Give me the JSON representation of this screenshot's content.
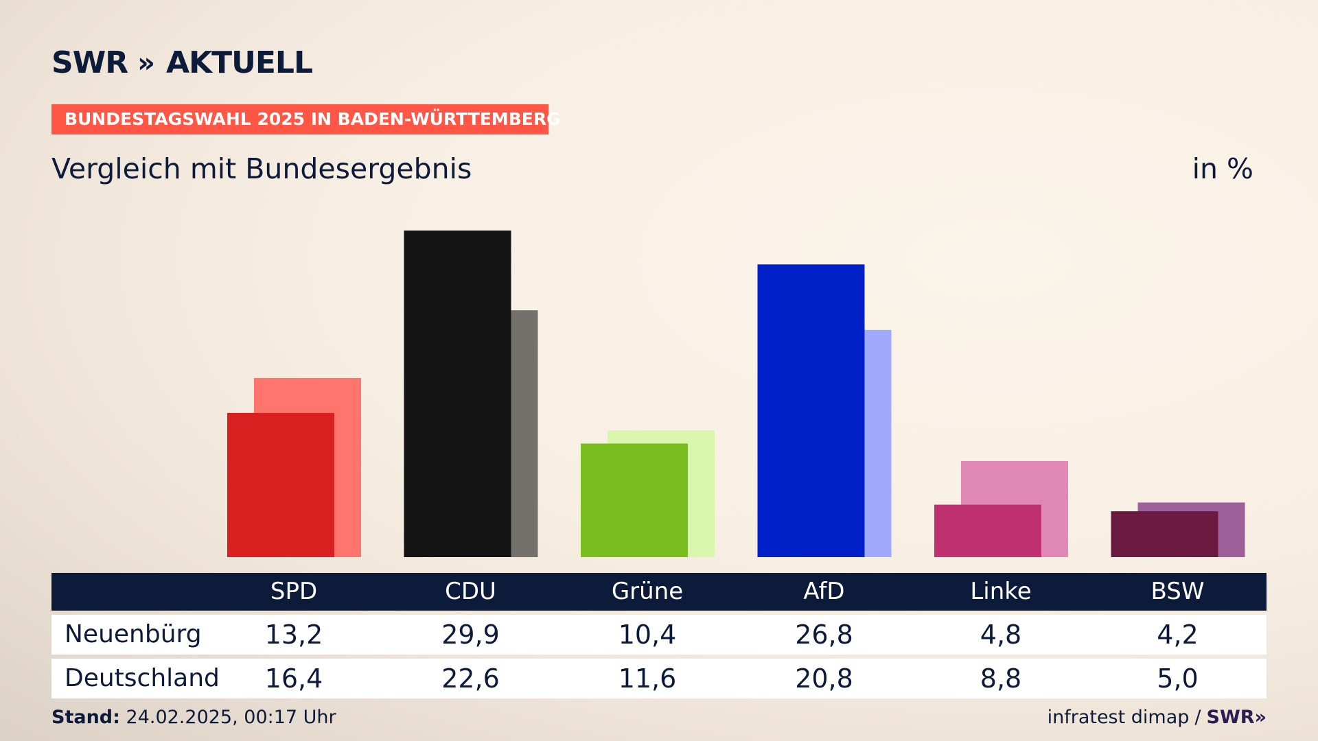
{
  "brand": {
    "logo_text": "SWR",
    "logo_chevrons": "»",
    "logo_suffix": "AKTUELL",
    "color": "#0d1b3a"
  },
  "banner": {
    "text": "BUNDESTAGSWAHL 2025 IN BADEN-WÜRTTEMBERG",
    "color": "#ff5645"
  },
  "subtitle": "Vergleich mit Bundesergebnis",
  "unit": "in %",
  "chart_data": {
    "type": "bar",
    "categories": [
      "SPD",
      "CDU",
      "Grüne",
      "AfD",
      "Linke",
      "BSW"
    ],
    "series": [
      {
        "name": "Neuenbürg",
        "values": [
          13.2,
          29.9,
          10.4,
          26.8,
          4.8,
          4.2
        ],
        "colors": [
          "#d7201f",
          "#141414",
          "#7abd1f",
          "#0020c8",
          "#be3070",
          "#6b1a40"
        ]
      },
      {
        "name": "Deutschland",
        "values": [
          16.4,
          22.6,
          11.6,
          20.8,
          8.8,
          5.0
        ],
        "colors": [
          "#ff756d",
          "#74716d",
          "#d9f6ad",
          "#9faafc",
          "#e088b6",
          "#9e6098"
        ]
      }
    ],
    "ylim": [
      0,
      30
    ],
    "grid": false,
    "legend": "table-below"
  },
  "table": {
    "rows": [
      {
        "label": "Neuenbürg",
        "values": [
          "13,2",
          "29,9",
          "10,4",
          "26,8",
          "4,8",
          "4,2"
        ]
      },
      {
        "label": "Deutschland",
        "values": [
          "16,4",
          "22,6",
          "11,6",
          "20,8",
          "8,8",
          "5,0"
        ]
      }
    ]
  },
  "footer": {
    "stand_label": "Stand:",
    "stand_value": "24.02.2025, 00:17 Uhr",
    "source": "infratest dimap",
    "separator": "/",
    "source_logo": "SWR»"
  }
}
